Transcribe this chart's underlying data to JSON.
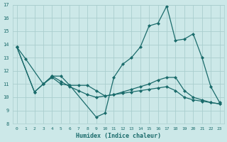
{
  "xlabel": "Humidex (Indice chaleur)",
  "xlim": [
    -0.5,
    23.5
  ],
  "ylim": [
    8,
    17
  ],
  "yticks": [
    8,
    9,
    10,
    11,
    12,
    13,
    14,
    15,
    16,
    17
  ],
  "xticks": [
    0,
    1,
    2,
    3,
    4,
    5,
    6,
    7,
    8,
    9,
    10,
    11,
    12,
    13,
    14,
    15,
    16,
    17,
    18,
    19,
    20,
    21,
    22,
    23
  ],
  "bg_color": "#cce8e8",
  "grid_color": "#aacece",
  "line_color": "#1a6b6b",
  "lines": [
    {
      "x": [
        0,
        1,
        3,
        4,
        5,
        6,
        9,
        10,
        11,
        12,
        13,
        14,
        15,
        16,
        17,
        18,
        19,
        20,
        21,
        22,
        23
      ],
      "y": [
        13.8,
        12.9,
        11.0,
        11.6,
        11.6,
        10.9,
        8.5,
        8.8,
        11.5,
        12.5,
        13.0,
        13.8,
        15.4,
        15.6,
        16.9,
        14.3,
        14.4,
        14.8,
        13.0,
        10.8,
        9.6
      ]
    },
    {
      "x": [
        0,
        2,
        3,
        4,
        5,
        6,
        7,
        8,
        9,
        10,
        11,
        12,
        13,
        14,
        15,
        16,
        17,
        18,
        19,
        20,
        21,
        22,
        23
      ],
      "y": [
        13.8,
        10.4,
        11.0,
        11.5,
        11.0,
        10.9,
        10.9,
        10.9,
        10.5,
        10.1,
        10.2,
        10.3,
        10.4,
        10.5,
        10.6,
        10.7,
        10.8,
        10.5,
        10.0,
        9.8,
        9.7,
        9.6,
        9.5
      ]
    },
    {
      "x": [
        0,
        2,
        3,
        4,
        5,
        6,
        7,
        8,
        9,
        10,
        11,
        12,
        13,
        14,
        15,
        16,
        17,
        18,
        19,
        20,
        21,
        22,
        23
      ],
      "y": [
        13.8,
        10.4,
        11.0,
        11.6,
        11.2,
        10.8,
        10.5,
        10.2,
        10.0,
        10.1,
        10.2,
        10.4,
        10.6,
        10.8,
        11.0,
        11.3,
        11.5,
        11.5,
        10.5,
        10.0,
        9.8,
        9.6,
        9.5
      ]
    }
  ]
}
